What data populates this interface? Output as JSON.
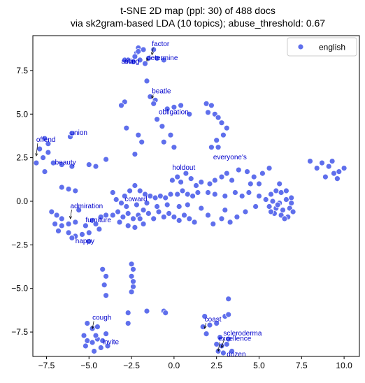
{
  "chart_data": {
    "type": "scatter",
    "title": "t-SNE 2D map (ppl: 30) of 488 docs",
    "subtitle": "via sk2gram-based LDA (10 topics); abuse_threshold: 0.67",
    "xlabel": "",
    "ylabel": "",
    "xlim": [
      -8.3,
      10.9
    ],
    "ylim": [
      -8.9,
      9.5
    ],
    "x_ticks": [
      -7.5,
      -5.0,
      -2.5,
      0.0,
      2.5,
      5.0,
      7.5,
      10.0
    ],
    "y_ticks": [
      -7.5,
      -5.0,
      -2.5,
      0.0,
      2.5,
      5.0,
      7.5
    ],
    "x_tick_labels": [
      "−7.5",
      "−5.0",
      "−2.5",
      "0.0",
      "2.5",
      "5.0",
      "7.5",
      "10.0"
    ],
    "y_tick_labels": [
      "−7.5",
      "−5.0",
      "−2.5",
      "0.0",
      "2.5",
      "5.0",
      "7.5"
    ],
    "grid": false,
    "legend": {
      "position": "top-right",
      "entries": [
        "english"
      ]
    },
    "colors": {
      "marker": "#5f6fec",
      "annotation": "#0000cc",
      "arrow": "#000000"
    },
    "series": [
      {
        "name": "english",
        "points": [
          [
            -2.1,
            8.8
          ],
          [
            -1.8,
            8.7
          ],
          [
            -2.2,
            8.5
          ],
          [
            -1.2,
            8.7
          ],
          [
            -2.3,
            8.3
          ],
          [
            -2.7,
            8.1
          ],
          [
            -2.0,
            8.1
          ],
          [
            -1.5,
            8.2
          ],
          [
            -1.0,
            8.2
          ],
          [
            -0.6,
            8.1
          ],
          [
            -2.4,
            8.0
          ],
          [
            -1.7,
            7.9
          ],
          [
            -2.9,
            8.1
          ],
          [
            -2.1,
            8.6
          ],
          [
            -1.6,
            6.9
          ],
          [
            -1.4,
            6.0
          ],
          [
            -1.1,
            5.8
          ],
          [
            -1.2,
            5.6
          ],
          [
            -2.9,
            5.7
          ],
          [
            -3.1,
            5.5
          ],
          [
            -1.0,
            4.7
          ],
          [
            -0.4,
            5.3
          ],
          [
            0.0,
            5.4
          ],
          [
            0.4,
            5.5
          ],
          [
            0.9,
            5.0
          ],
          [
            -0.7,
            4.3
          ],
          [
            -0.2,
            3.8
          ],
          [
            -0.6,
            3.4
          ],
          [
            0.0,
            3.1
          ],
          [
            -2.8,
            4.2
          ],
          [
            -2.1,
            3.8
          ],
          [
            -1.9,
            3.4
          ],
          [
            -2.3,
            2.7
          ],
          [
            1.9,
            5.6
          ],
          [
            2.2,
            5.5
          ],
          [
            2.0,
            5.1
          ],
          [
            2.4,
            5.0
          ],
          [
            2.6,
            4.8
          ],
          [
            2.8,
            4.5
          ],
          [
            3.1,
            4.2
          ],
          [
            2.9,
            3.8
          ],
          [
            2.5,
            3.5
          ],
          [
            2.2,
            3.1
          ],
          [
            2.6,
            3.1
          ],
          [
            -6.1,
            3.7
          ],
          [
            -6.0,
            3.9
          ],
          [
            -7.6,
            3.6
          ],
          [
            -7.4,
            3.3
          ],
          [
            -7.9,
            3.0
          ],
          [
            -7.7,
            2.5
          ],
          [
            -7.4,
            2.8
          ],
          [
            -7.1,
            2.2
          ],
          [
            -8.1,
            2.2
          ],
          [
            -6.6,
            2.1
          ],
          [
            -6.0,
            2.0
          ],
          [
            -5.0,
            2.1
          ],
          [
            -4.6,
            2.0
          ],
          [
            -4.0,
            2.4
          ],
          [
            -7.6,
            1.7
          ],
          [
            -6.6,
            0.8
          ],
          [
            -6.2,
            0.7
          ],
          [
            -5.8,
            0.6
          ],
          [
            -7.2,
            -0.6
          ],
          [
            -6.9,
            -0.8
          ],
          [
            -6.6,
            -1.0
          ],
          [
            -7.0,
            -1.3
          ],
          [
            -6.6,
            -1.4
          ],
          [
            -6.2,
            -1.3
          ],
          [
            -5.8,
            -1.2
          ],
          [
            -5.2,
            -1.4
          ],
          [
            -4.8,
            -1.1
          ],
          [
            -4.6,
            -1.3
          ],
          [
            -6.8,
            -1.7
          ],
          [
            -6.2,
            -1.8
          ],
          [
            -5.8,
            -2.0
          ],
          [
            -5.4,
            -1.9
          ],
          [
            -5.0,
            -1.8
          ],
          [
            -4.4,
            -1.6
          ],
          [
            -4.3,
            -0.9
          ],
          [
            -4.0,
            -0.8
          ],
          [
            -5.6,
            -0.5
          ],
          [
            -6.0,
            -2.1
          ],
          [
            -5.0,
            -2.3
          ],
          [
            -3.6,
            0.5
          ],
          [
            -3.4,
            0.1
          ],
          [
            -3.1,
            -0.1
          ],
          [
            -2.9,
            0.3
          ],
          [
            -2.6,
            0.6
          ],
          [
            -2.3,
            0.9
          ],
          [
            -2.0,
            0.6
          ],
          [
            -1.7,
            0.4
          ],
          [
            -1.4,
            0.3
          ],
          [
            -1.1,
            0.2
          ],
          [
            -0.8,
            0.3
          ],
          [
            -0.5,
            0.2
          ],
          [
            -0.2,
            0.4
          ],
          [
            0.2,
            0.4
          ],
          [
            0.5,
            0.6
          ],
          [
            0.8,
            0.4
          ],
          [
            1.1,
            0.3
          ],
          [
            1.4,
            0.5
          ],
          [
            -0.1,
            1.2
          ],
          [
            0.2,
            1.4
          ],
          [
            0.4,
            1.1
          ],
          [
            0.7,
            1.6
          ],
          [
            1.0,
            1.3
          ],
          [
            1.3,
            0.9
          ],
          [
            1.6,
            1.1
          ],
          [
            2.1,
            1.0
          ],
          [
            2.4,
            1.2
          ],
          [
            2.8,
            1.4
          ],
          [
            3.1,
            1.6
          ],
          [
            3.4,
            1.2
          ],
          [
            3.8,
            1.8
          ],
          [
            4.3,
            1.7
          ],
          [
            4.7,
            1.4
          ],
          [
            5.2,
            1.6
          ],
          [
            5.6,
            1.9
          ],
          [
            6.2,
            1.0
          ],
          [
            4.5,
            1.0
          ],
          [
            5.0,
            1.0
          ],
          [
            2.0,
            0.5
          ],
          [
            2.4,
            0.4
          ],
          [
            3.0,
            0.3
          ],
          [
            3.6,
            0.5
          ],
          [
            4.0,
            0.3
          ],
          [
            4.4,
            0.5
          ],
          [
            5.0,
            0.3
          ],
          [
            5.4,
            0.1
          ],
          [
            4.8,
            -0.3
          ],
          [
            4.2,
            -0.6
          ],
          [
            3.7,
            -0.9
          ],
          [
            3.3,
            -1.2
          ],
          [
            2.8,
            -1.0
          ],
          [
            2.3,
            -1.3
          ],
          [
            3.0,
            -0.5
          ],
          [
            5.7,
            0.4
          ],
          [
            6.0,
            0.6
          ],
          [
            6.3,
            0.5
          ],
          [
            6.6,
            0.6
          ],
          [
            5.8,
            0.0
          ],
          [
            6.2,
            -0.1
          ],
          [
            6.6,
            0.1
          ],
          [
            6.9,
            0.2
          ],
          [
            5.6,
            -0.3
          ],
          [
            6.0,
            -0.4
          ],
          [
            6.4,
            -0.5
          ],
          [
            6.8,
            -0.4
          ],
          [
            5.9,
            -0.7
          ],
          [
            6.3,
            -0.8
          ],
          [
            6.7,
            -0.9
          ],
          [
            7.0,
            -0.6
          ],
          [
            6.5,
            -1.0
          ],
          [
            6.1,
            -0.2
          ],
          [
            6.9,
            -0.1
          ],
          [
            5.7,
            -0.6
          ],
          [
            8.0,
            2.3
          ],
          [
            8.4,
            1.9
          ],
          [
            8.7,
            2.2
          ],
          [
            9.1,
            2.0
          ],
          [
            9.4,
            1.6
          ],
          [
            9.7,
            1.7
          ],
          [
            10.0,
            1.9
          ],
          [
            8.9,
            1.4
          ],
          [
            9.3,
            2.3
          ],
          [
            9.6,
            1.3
          ],
          [
            -3.6,
            -0.8
          ],
          [
            -3.3,
            -0.6
          ],
          [
            -3.0,
            -0.9
          ],
          [
            -2.7,
            -0.7
          ],
          [
            -2.4,
            -1.0
          ],
          [
            -2.1,
            -0.8
          ],
          [
            -1.8,
            -0.5
          ],
          [
            -1.5,
            -0.7
          ],
          [
            -1.2,
            -1.0
          ],
          [
            -0.9,
            -0.6
          ],
          [
            -0.6,
            -0.9
          ],
          [
            -0.3,
            -0.7
          ],
          [
            0.0,
            -0.9
          ],
          [
            0.3,
            -1.1
          ],
          [
            0.6,
            -0.8
          ],
          [
            0.9,
            -1.0
          ],
          [
            1.2,
            -1.2
          ],
          [
            -3.2,
            -1.2
          ],
          [
            -2.7,
            -1.4
          ],
          [
            -2.3,
            -1.5
          ],
          [
            -1.8,
            -1.3
          ],
          [
            -2.0,
            -1.0
          ],
          [
            -2.8,
            -0.3
          ],
          [
            -2.2,
            -0.2
          ],
          [
            -1.6,
            -0.1
          ],
          [
            -1.0,
            -0.3
          ],
          [
            -0.4,
            -0.2
          ],
          [
            0.3,
            -0.3
          ],
          [
            0.8,
            -0.2
          ],
          [
            1.6,
            -0.4
          ],
          [
            2.0,
            -0.8
          ],
          [
            -4.2,
            -3.9
          ],
          [
            -4.0,
            -4.3
          ],
          [
            -4.1,
            -4.8
          ],
          [
            -4.0,
            -5.4
          ],
          [
            -2.5,
            -3.6
          ],
          [
            -2.4,
            -3.9
          ],
          [
            -2.5,
            -4.3
          ],
          [
            -2.4,
            -4.6
          ],
          [
            -2.4,
            -4.9
          ],
          [
            -2.5,
            -5.2
          ],
          [
            -5.1,
            -7.0
          ],
          [
            -4.8,
            -7.3
          ],
          [
            -4.5,
            -7.2
          ],
          [
            -5.3,
            -7.7
          ],
          [
            -5.1,
            -8.0
          ],
          [
            -4.8,
            -8.1
          ],
          [
            -4.5,
            -7.9
          ],
          [
            -4.2,
            -8.0
          ],
          [
            -4.0,
            -7.6
          ],
          [
            -4.3,
            -8.4
          ],
          [
            -4.7,
            -8.6
          ],
          [
            -5.2,
            -8.3
          ],
          [
            -3.9,
            -8.3
          ],
          [
            -4.6,
            -7.7
          ],
          [
            -1.6,
            -6.3
          ],
          [
            -0.6,
            -6.3
          ],
          [
            -0.5,
            -6.4
          ],
          [
            -2.7,
            -6.4
          ],
          [
            -2.7,
            -7.0
          ],
          [
            1.8,
            -6.6
          ],
          [
            1.7,
            -7.2
          ],
          [
            2.1,
            -7.1
          ],
          [
            2.5,
            -7.0
          ],
          [
            3.0,
            -6.6
          ],
          [
            3.2,
            -6.5
          ],
          [
            3.2,
            -5.6
          ],
          [
            1.9,
            -7.6
          ],
          [
            2.5,
            -8.2
          ],
          [
            2.6,
            -8.6
          ],
          [
            2.8,
            -8.3
          ],
          [
            3.1,
            -8.2
          ],
          [
            3.4,
            -8.6
          ],
          [
            2.9,
            -8.7
          ],
          [
            3.2,
            -7.9
          ],
          [
            2.7,
            -7.8
          ]
        ]
      }
    ],
    "annotations": [
      {
        "text": "factor",
        "x": -1.3,
        "y": 8.4,
        "tx": -1.3,
        "ty": 8.9,
        "arrow": true
      },
      {
        "text": "alive",
        "x": -2.4,
        "y": 8.1,
        "tx": -3.1,
        "ty": 7.9,
        "arrow": false
      },
      {
        "text": "sting",
        "x": -2.1,
        "y": 8.1,
        "tx": -2.9,
        "ty": 7.9,
        "arrow": false
      },
      {
        "text": "determine",
        "x": -1.6,
        "y": 8.2,
        "tx": -1.6,
        "ty": 8.1,
        "arrow": true
      },
      {
        "text": "beatle",
        "x": -1.3,
        "y": 5.9,
        "tx": -1.3,
        "ty": 6.2,
        "arrow": true
      },
      {
        "text": "obligation",
        "x": -0.9,
        "y": 5.0,
        "tx": -0.9,
        "ty": 5.0,
        "arrow": false
      },
      {
        "text": "union",
        "x": -6.1,
        "y": 3.8,
        "tx": -6.1,
        "ty": 3.8,
        "arrow": false
      },
      {
        "text": "offend",
        "x": -8.1,
        "y": 2.6,
        "tx": -8.1,
        "ty": 3.4,
        "arrow": true
      },
      {
        "text": "beauty",
        "x": -7.0,
        "y": 2.1,
        "tx": -7.0,
        "ty": 2.1,
        "arrow": false
      },
      {
        "text": "everyone's",
        "x": 2.3,
        "y": 2.4,
        "tx": 2.3,
        "ty": 2.4,
        "arrow": false
      },
      {
        "text": "holdout",
        "x": -0.1,
        "y": 1.8,
        "tx": -0.1,
        "ty": 1.8,
        "arrow": false
      },
      {
        "text": "coward",
        "x": -2.9,
        "y": 0.0,
        "tx": -2.9,
        "ty": 0.0,
        "arrow": false
      },
      {
        "text": "admiration",
        "x": -6.1,
        "y": -1.0,
        "tx": -6.1,
        "ty": -0.4,
        "arrow": true
      },
      {
        "text": "furniture",
        "x": -5.2,
        "y": -1.2,
        "tx": -5.2,
        "ty": -1.2,
        "arrow": false
      },
      {
        "text": "happy",
        "x": -5.8,
        "y": -2.4,
        "tx": -5.8,
        "ty": -2.4,
        "arrow": false
      },
      {
        "text": "cough",
        "x": -4.8,
        "y": -7.3,
        "tx": -4.8,
        "ty": -6.8,
        "arrow": true
      },
      {
        "text": "invite",
        "x": -4.2,
        "y": -8.2,
        "tx": -4.2,
        "ty": -8.2,
        "arrow": false
      },
      {
        "text": "coast",
        "x": 1.8,
        "y": -7.3,
        "tx": 1.8,
        "ty": -6.9,
        "arrow": true
      },
      {
        "text": "scleroderma",
        "x": 2.8,
        "y": -8.4,
        "tx": 2.9,
        "ty": -7.7,
        "arrow": true
      },
      {
        "text": "excellence",
        "x": 2.6,
        "y": -8.6,
        "tx": 2.6,
        "ty": -8.0,
        "arrow": true
      },
      {
        "text": "dozen",
        "x": 3.1,
        "y": -8.9,
        "tx": 3.1,
        "ty": -8.9,
        "arrow": false
      }
    ]
  }
}
